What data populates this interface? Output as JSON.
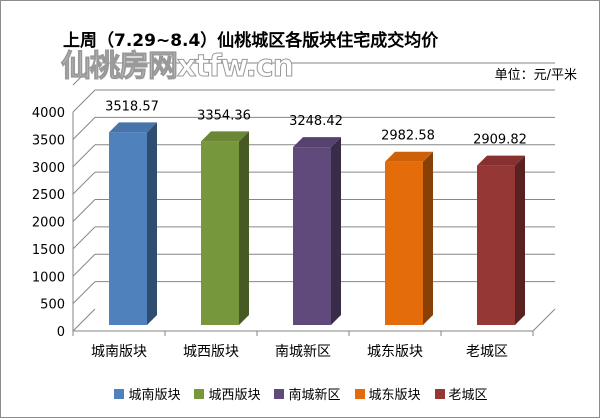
{
  "chart_data": {
    "type": "bar",
    "title": "上周（7.29~8.4）仙桃城区各版块住宅成交均价",
    "unit_label": "单位：元/平米",
    "categories": [
      "城南版块",
      "城西版块",
      "南城新区",
      "城东版块",
      "老城区"
    ],
    "values": [
      3518.57,
      3354.36,
      3248.42,
      2982.58,
      2909.82
    ],
    "value_labels": [
      "3518.57",
      "3354.36",
      "3248.42",
      "2982.58",
      "2909.82"
    ],
    "colors": [
      "#4f81bd",
      "#77973d",
      "#604a7b",
      "#e46c0a",
      "#953735"
    ],
    "ylim": [
      0,
      4000
    ],
    "yticks": [
      "0",
      "500",
      "1000",
      "1500",
      "2000",
      "2500",
      "3000",
      "3500",
      "4000"
    ],
    "grid": true,
    "legend_position": "bottom",
    "style": "3d-column"
  },
  "watermark": "仙桃房网xtfw.cn"
}
